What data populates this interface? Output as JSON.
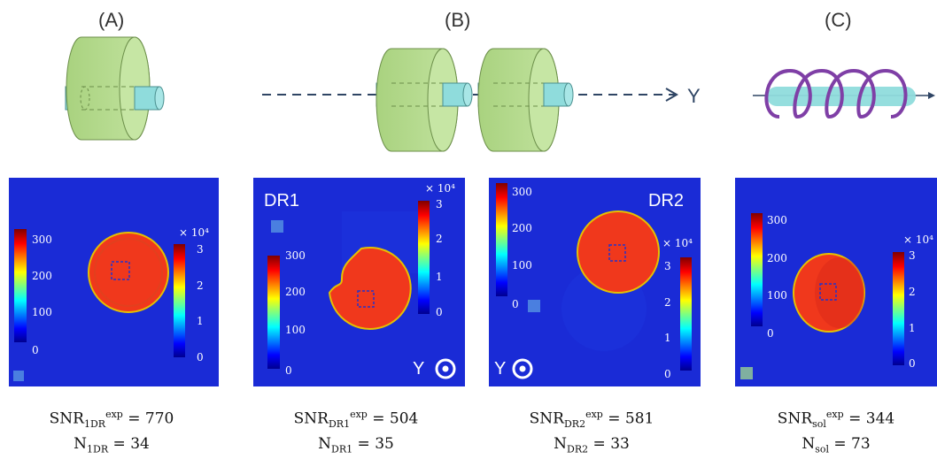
{
  "panels": [
    {
      "id": "A",
      "label": "(A)",
      "formula": {
        "snr_sub": "1DR",
        "snr_sup": "exp",
        "snr_value": "770",
        "n_sub": "1DR",
        "n_value": "34"
      },
      "map": {
        "title": "",
        "left_ticks": [
          "300",
          "200",
          "100",
          "0"
        ],
        "right_ticks": [
          "3",
          "2",
          "1",
          "0"
        ],
        "scale_label": "× 10⁴"
      }
    },
    {
      "id": "B1",
      "label": "(B)",
      "axis_label": "Y",
      "formula": {
        "snr_sub": "DR1",
        "snr_sup": "exp",
        "snr_value": "504",
        "n_sub": "DR1",
        "n_value": "35"
      },
      "map": {
        "title": "DR1",
        "left_ticks": [
          "300",
          "200",
          "100",
          "0"
        ],
        "right_ticks": [
          "3",
          "2",
          "1",
          "0"
        ],
        "scale_label": "× 10⁴",
        "direction_label": "Y"
      }
    },
    {
      "id": "B2",
      "formula": {
        "snr_sub": "DR2",
        "snr_sup": "exp",
        "snr_value": "581",
        "n_sub": "DR2",
        "n_value": "33"
      },
      "map": {
        "title": "DR2",
        "left_ticks": [
          "300",
          "200",
          "100",
          "0"
        ],
        "right_ticks": [
          "3",
          "2",
          "1",
          "0"
        ],
        "scale_label": "× 10⁴",
        "direction_label": "Y"
      }
    },
    {
      "id": "C",
      "label": "(C)",
      "formula": {
        "snr_sub": "sol",
        "snr_sup": "exp",
        "snr_value": "344",
        "n_sub": "sol",
        "n_value": "73"
      },
      "map": {
        "title": "",
        "left_ticks": [
          "300",
          "200",
          "100",
          "0"
        ],
        "right_ticks": [
          "3",
          "2",
          "1",
          "0"
        ],
        "scale_label": "× 10⁴"
      }
    }
  ],
  "colors": {
    "background_map": "#1a2bd6",
    "disk_fill": "#f0381c",
    "cylinder_green": "#b5dc8e",
    "rod_cyan": "#8fdcdc",
    "coil_purple": "#7f3fa6",
    "arrow_navy": "#2f4564"
  }
}
